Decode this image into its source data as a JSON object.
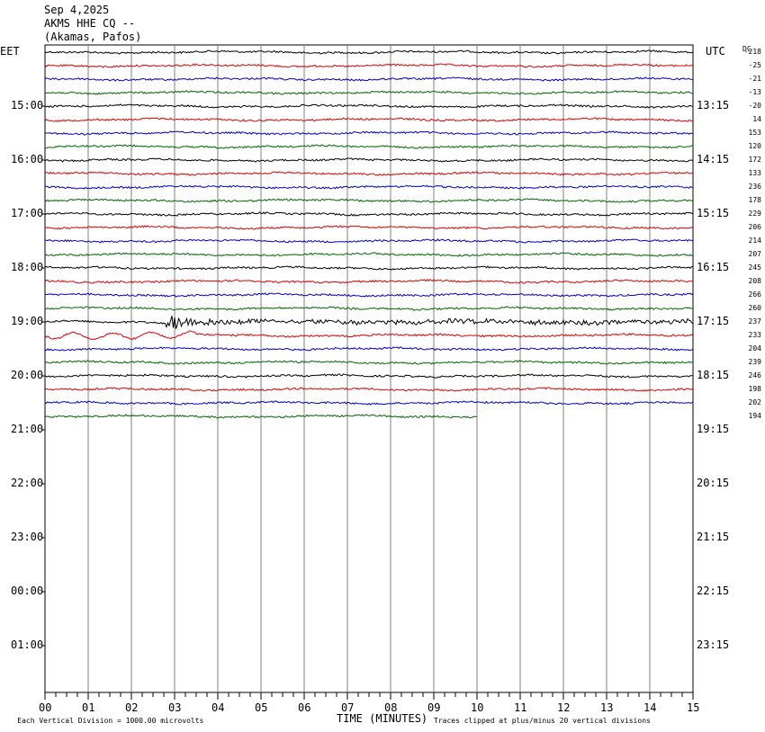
{
  "header": {
    "date": "Sep 4,2025",
    "station": "AKMS HHE CQ --",
    "location": "(Akamas, Pafos)"
  },
  "left_timezone": "EET",
  "right_timezone": "UTC",
  "dc_label": "DC",
  "footer": {
    "scale_note": "Each Vertical Division = 1000.00 microvolts",
    "axis_title": "TIME (MINUTES)",
    "clip_note": "Traces clipped at plus/minus 20 vertical divisions"
  },
  "colors": {
    "black": "#000000",
    "red": "#e00000",
    "blue": "#0000cc",
    "green": "#006600",
    "grid": "#808080"
  },
  "chart_data": {
    "type": "line",
    "subtype": "helicorder",
    "xlabel": "TIME (MINUTES)",
    "xlim": [
      0,
      15
    ],
    "x_ticks": [
      "00",
      "01",
      "02",
      "03",
      "04",
      "05",
      "06",
      "07",
      "08",
      "09",
      "10",
      "11",
      "12",
      "13",
      "14",
      "15"
    ],
    "left_hour_labels": [
      "15:00",
      "16:00",
      "17:00",
      "18:00",
      "19:00",
      "20:00",
      "21:00",
      "22:00",
      "23:00",
      "00:00",
      "01:00"
    ],
    "right_hour_labels": [
      "13:15",
      "14:15",
      "15:15",
      "16:15",
      "17:15",
      "18:15",
      "19:15",
      "20:15",
      "21:15",
      "22:15",
      "23:15"
    ],
    "trace_color_cycle": [
      "black",
      "red",
      "blue",
      "green"
    ],
    "dc_offsets": [
      -218,
      -25,
      -21,
      -13,
      -20,
      14,
      153,
      120,
      172,
      133,
      236,
      178,
      229,
      206,
      214,
      207,
      245,
      208,
      266,
      260,
      237,
      233,
      204,
      239,
      246,
      198,
      202,
      194
    ],
    "last_trace_end_minute": 10,
    "event": {
      "trace_index": 20,
      "start_minute": 2.8,
      "end_minute": 15,
      "peak_minute": 2.9
    }
  }
}
